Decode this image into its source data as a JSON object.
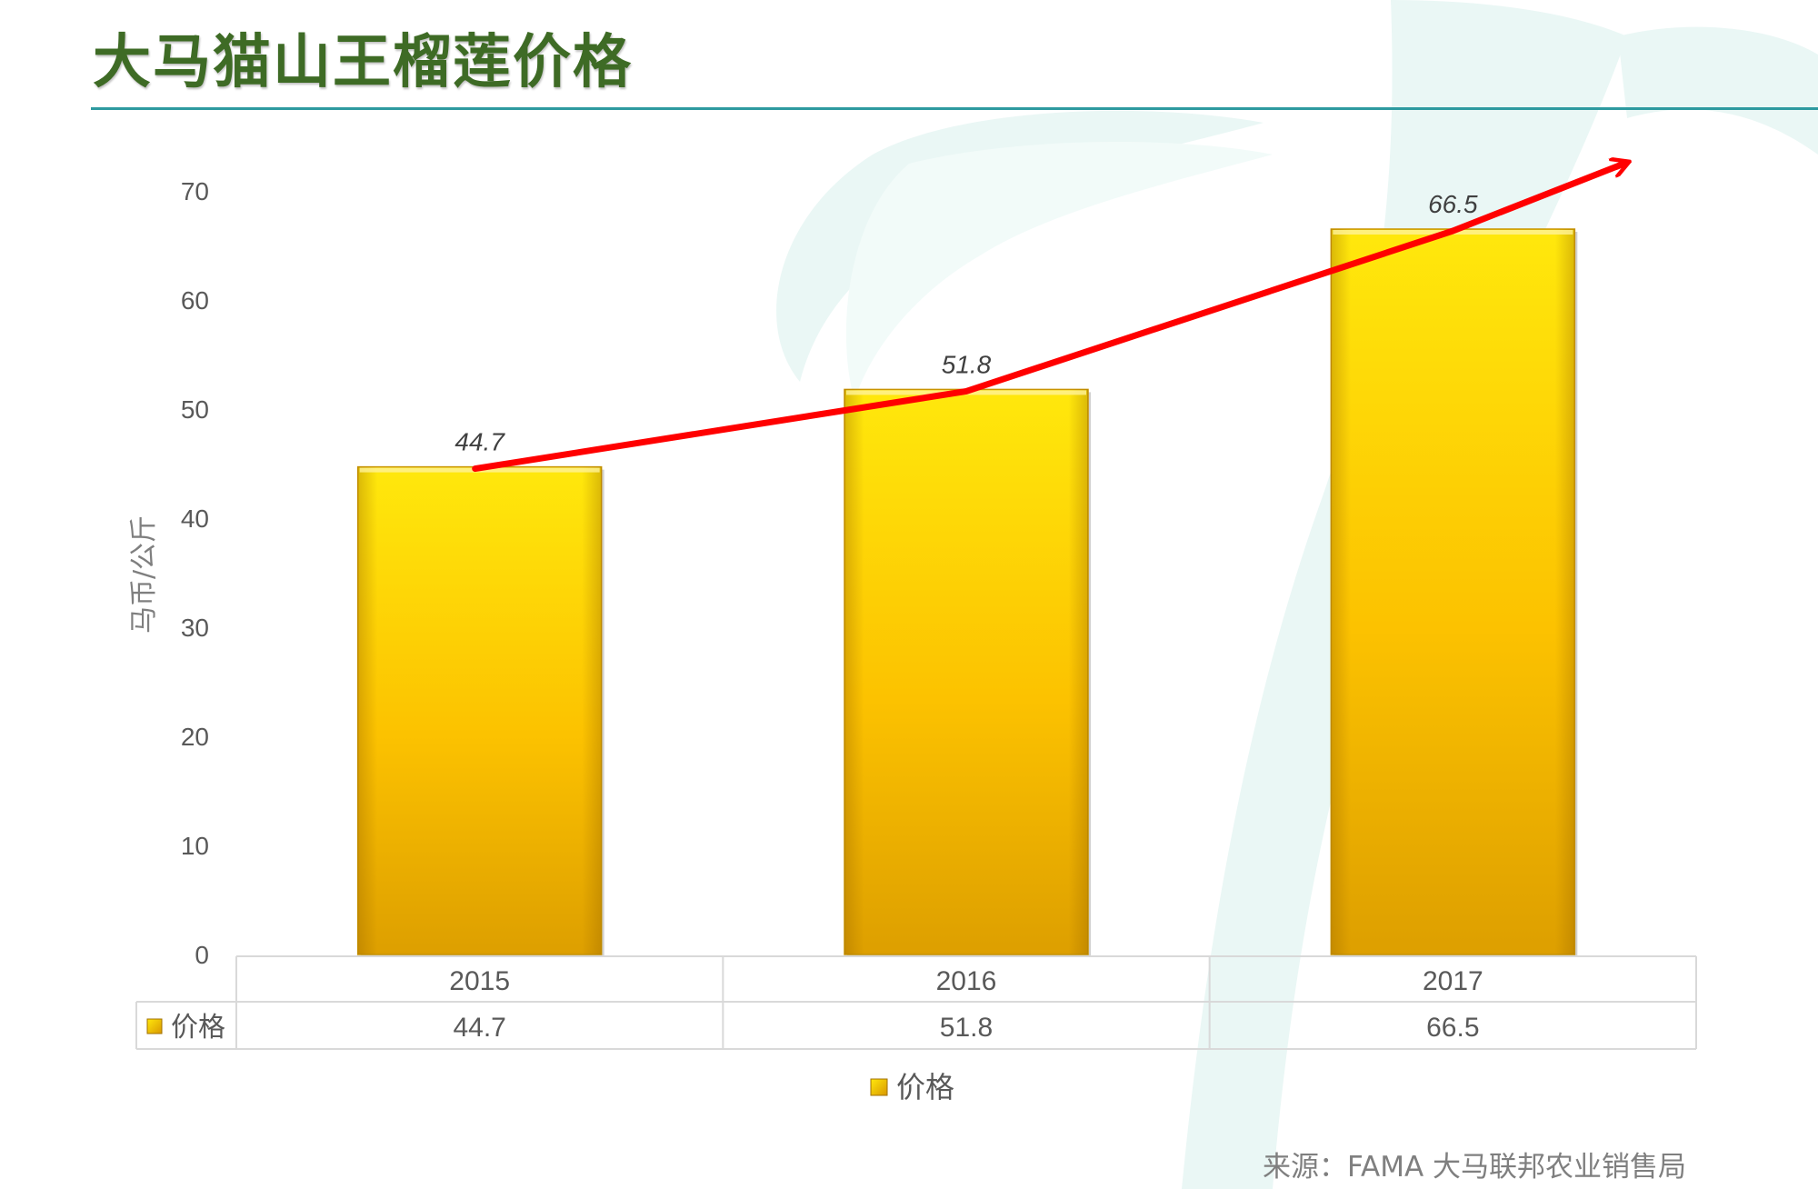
{
  "title": "大马猫山王榴莲价格",
  "source": "来源：FAMA 大马联邦农业销售局",
  "colors": {
    "title": "#3e6b25",
    "rule": "#2e9aa0",
    "bar_top": "#ffe60a",
    "bar_bottom": "#e0a000",
    "trend_arrow": "#ff0000",
    "watermark": "#e8f6f4"
  },
  "chart_data": {
    "type": "bar",
    "categories": [
      "2015",
      "2016",
      "2017"
    ],
    "series": [
      {
        "name": "价格",
        "values": [
          44.7,
          51.8,
          66.5
        ]
      }
    ],
    "ylabel": "马币/公斤",
    "xlabel": "",
    "ylim": [
      0,
      70
    ],
    "yticks": [
      0,
      10,
      20,
      30,
      40,
      50,
      60,
      70
    ],
    "grid": false,
    "data_table": true,
    "legend": "bottom",
    "trend_arrow": "up"
  }
}
